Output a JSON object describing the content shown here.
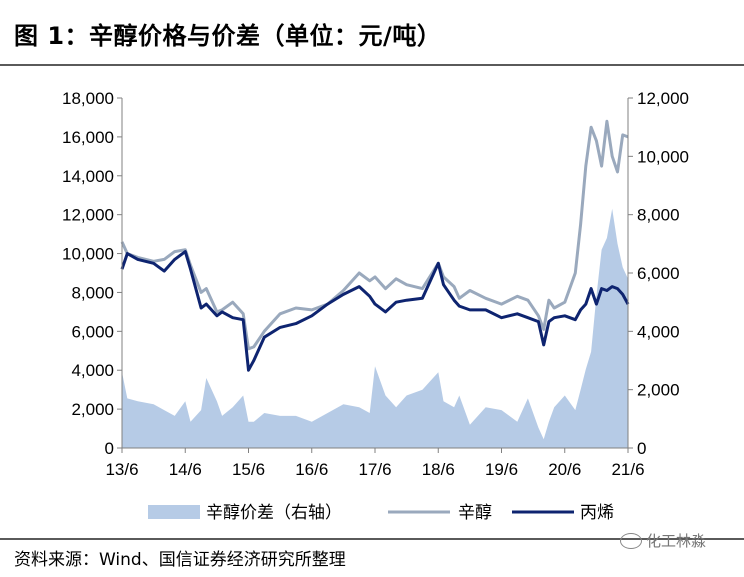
{
  "figure": {
    "title": "图 1：辛醇价格与价差（单位：元/吨）",
    "source": "资料来源：Wind、国信证券经济研究所整理",
    "watermark": "化工林淼",
    "watermark_icon": "wechat-icon"
  },
  "chart_data": {
    "type": "line",
    "title": "辛醇价格与价差（单位：元/吨）",
    "xlabel": "",
    "ylabel": "",
    "x_ticks": [
      "13/6",
      "14/6",
      "15/6",
      "16/6",
      "17/6",
      "18/6",
      "19/6",
      "20/6",
      "21/6"
    ],
    "x_range": [
      "2013-06",
      "2021-06"
    ],
    "left_axis": {
      "range": [
        0,
        18000
      ],
      "ticks": [
        "0",
        "2,000",
        "4,000",
        "6,000",
        "8,000",
        "10,000",
        "12,000",
        "14,000",
        "16,000",
        "18,000"
      ]
    },
    "right_axis": {
      "range": [
        0,
        12000
      ],
      "ticks": [
        "0",
        "2,000",
        "4,000",
        "6,000",
        "8,000",
        "10,000",
        "12,000"
      ]
    },
    "legend": [
      "辛醇价差（右轴）",
      "辛醇",
      "丙烯"
    ],
    "legend_position": "bottom",
    "grid": false,
    "colors": {
      "spread": "#b6cbe6",
      "octanol": "#9aa9bd",
      "propylene": "#0e2470"
    },
    "x": [
      "2013-06",
      "2013-07",
      "2013-09",
      "2013-12",
      "2014-02",
      "2014-04",
      "2014-06",
      "2014-07",
      "2014-09",
      "2014-10",
      "2014-12",
      "2015-01",
      "2015-03",
      "2015-05",
      "2015-06",
      "2015-07",
      "2015-09",
      "2015-12",
      "2016-03",
      "2016-06",
      "2016-09",
      "2016-12",
      "2017-03",
      "2017-05",
      "2017-06",
      "2017-08",
      "2017-10",
      "2017-12",
      "2018-03",
      "2018-06",
      "2018-07",
      "2018-09",
      "2018-10",
      "2018-12",
      "2019-03",
      "2019-06",
      "2019-09",
      "2019-11",
      "2020-01",
      "2020-02",
      "2020-03",
      "2020-04",
      "2020-06",
      "2020-08",
      "2020-09",
      "2020-10",
      "2020-11",
      "2020-12",
      "2021-01",
      "2021-02",
      "2021-03",
      "2021-04",
      "2021-05",
      "2021-06"
    ],
    "series": [
      {
        "name": "辛醇价差（右轴）",
        "axis": "right",
        "values": [
          2600,
          1700,
          1600,
          1500,
          1300,
          1100,
          1600,
          900,
          1300,
          2400,
          1600,
          1100,
          1400,
          1800,
          900,
          900,
          1200,
          1100,
          1100,
          900,
          1200,
          1500,
          1400,
          1200,
          2800,
          1800,
          1400,
          1800,
          2000,
          2600,
          1600,
          1400,
          1800,
          800,
          1400,
          1300,
          900,
          1700,
          700,
          300,
          900,
          1400,
          1800,
          1300,
          2000,
          2700,
          3300,
          5200,
          6800,
          7200,
          8200,
          7000,
          6200,
          5800
        ]
      },
      {
        "name": "辛醇",
        "axis": "left",
        "values": [
          10600,
          10000,
          9800,
          9600,
          9700,
          10100,
          10200,
          9400,
          8000,
          8200,
          7000,
          7100,
          7500,
          6900,
          5100,
          5200,
          6000,
          6900,
          7200,
          7100,
          7400,
          8100,
          9000,
          8600,
          8800,
          8200,
          8700,
          8400,
          8200,
          9500,
          8800,
          8300,
          7700,
          8100,
          7700,
          7400,
          7800,
          7600,
          6800,
          6100,
          7600,
          7200,
          7500,
          9000,
          11500,
          14500,
          16500,
          15800,
          14500,
          16800,
          15000,
          14200,
          16100,
          16000
        ]
      },
      {
        "name": "丙烯",
        "axis": "left",
        "values": [
          9200,
          10000,
          9700,
          9500,
          9100,
          9700,
          10100,
          9200,
          7200,
          7400,
          6800,
          7000,
          6700,
          6600,
          4000,
          4500,
          5700,
          6200,
          6400,
          6800,
          7400,
          7900,
          8300,
          7800,
          7400,
          7000,
          7500,
          7600,
          7700,
          9500,
          8400,
          7600,
          7300,
          7100,
          7100,
          6700,
          6900,
          6700,
          6500,
          5300,
          6500,
          6700,
          6800,
          6600,
          7100,
          7400,
          8200,
          7400,
          8200,
          8100,
          8300,
          8200,
          7900,
          7400
        ]
      }
    ]
  }
}
